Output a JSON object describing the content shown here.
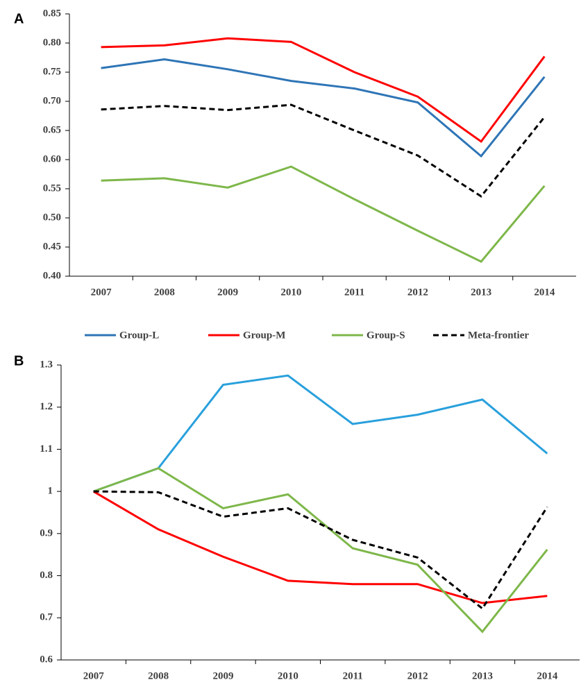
{
  "chart_data": [
    {
      "type": "line",
      "panel_label": "A",
      "categories": [
        "2007",
        "2008",
        "2009",
        "2010",
        "2011",
        "2012",
        "2013",
        "2014"
      ],
      "series": [
        {
          "color": "#2e75b6",
          "dash": false,
          "values": [
            0.757,
            0.772,
            0.755,
            0.735,
            0.722,
            0.698,
            0.606,
            0.742
          ]
        },
        {
          "color": "#ff0000",
          "dash": false,
          "values": [
            0.793,
            0.796,
            0.808,
            0.802,
            0.75,
            0.708,
            0.631,
            0.777
          ]
        },
        {
          "color": "#7eb74a",
          "dash": false,
          "values": [
            0.564,
            0.568,
            0.552,
            0.588,
            0.532,
            0.478,
            0.425,
            0.555
          ]
        },
        {
          "color": "#000000",
          "dash": true,
          "values": [
            0.686,
            0.692,
            0.685,
            0.694,
            0.65,
            0.607,
            0.537,
            0.673
          ]
        }
      ],
      "ylim": [
        0.4,
        0.85
      ],
      "yticks": [
        {
          "value": 0.4,
          "label": "0.40"
        },
        0.45,
        {
          "value": 0.5,
          "label": "0.50"
        },
        0.55,
        {
          "value": 0.6,
          "label": "0.60"
        },
        0.65,
        {
          "value": 0.7,
          "label": "0.70"
        },
        0.75,
        {
          "value": 0.8,
          "label": "0.80"
        },
        0.85
      ]
    },
    {
      "type": "line",
      "panel_label": "B",
      "categories": [
        "2007",
        "2008",
        "2009",
        "2010",
        "2011",
        "2012",
        "2013",
        "2014"
      ],
      "series": [
        {
          "color": "#29a0dc",
          "dash": false,
          "values": [
            1,
            1.055,
            1.253,
            1.275,
            1.16,
            1.182,
            1.218,
            1.09
          ]
        },
        {
          "color": "#ff0000",
          "dash": false,
          "values": [
            1,
            0.91,
            0.845,
            0.788,
            0.78,
            0.78,
            0.735,
            0.752
          ]
        },
        {
          "color": "#7eb74a",
          "dash": false,
          "values": [
            1,
            1.055,
            0.96,
            0.993,
            0.865,
            0.826,
            0.667,
            0.862
          ]
        },
        {
          "color": "#000000",
          "dash": true,
          "values": [
            1,
            0.998,
            0.94,
            0.96,
            0.885,
            0.843,
            0.722,
            0.963
          ]
        }
      ],
      "ylim": [
        0.6,
        1.3
      ],
      "yticks": [
        0.6,
        0.7,
        0.8,
        0.9,
        1,
        1.1,
        1.2,
        1.3
      ]
    }
  ],
  "legend": [
    {
      "name": "Group-L",
      "color": "#2e75b6",
      "dash": false
    },
    {
      "name": "Group-M",
      "color": "#ff0000",
      "dash": false
    },
    {
      "name": "Group-S",
      "color": "#7eb74a",
      "dash": false
    },
    {
      "name": "Meta-frontier",
      "color": "#000000",
      "dash": true
    }
  ]
}
